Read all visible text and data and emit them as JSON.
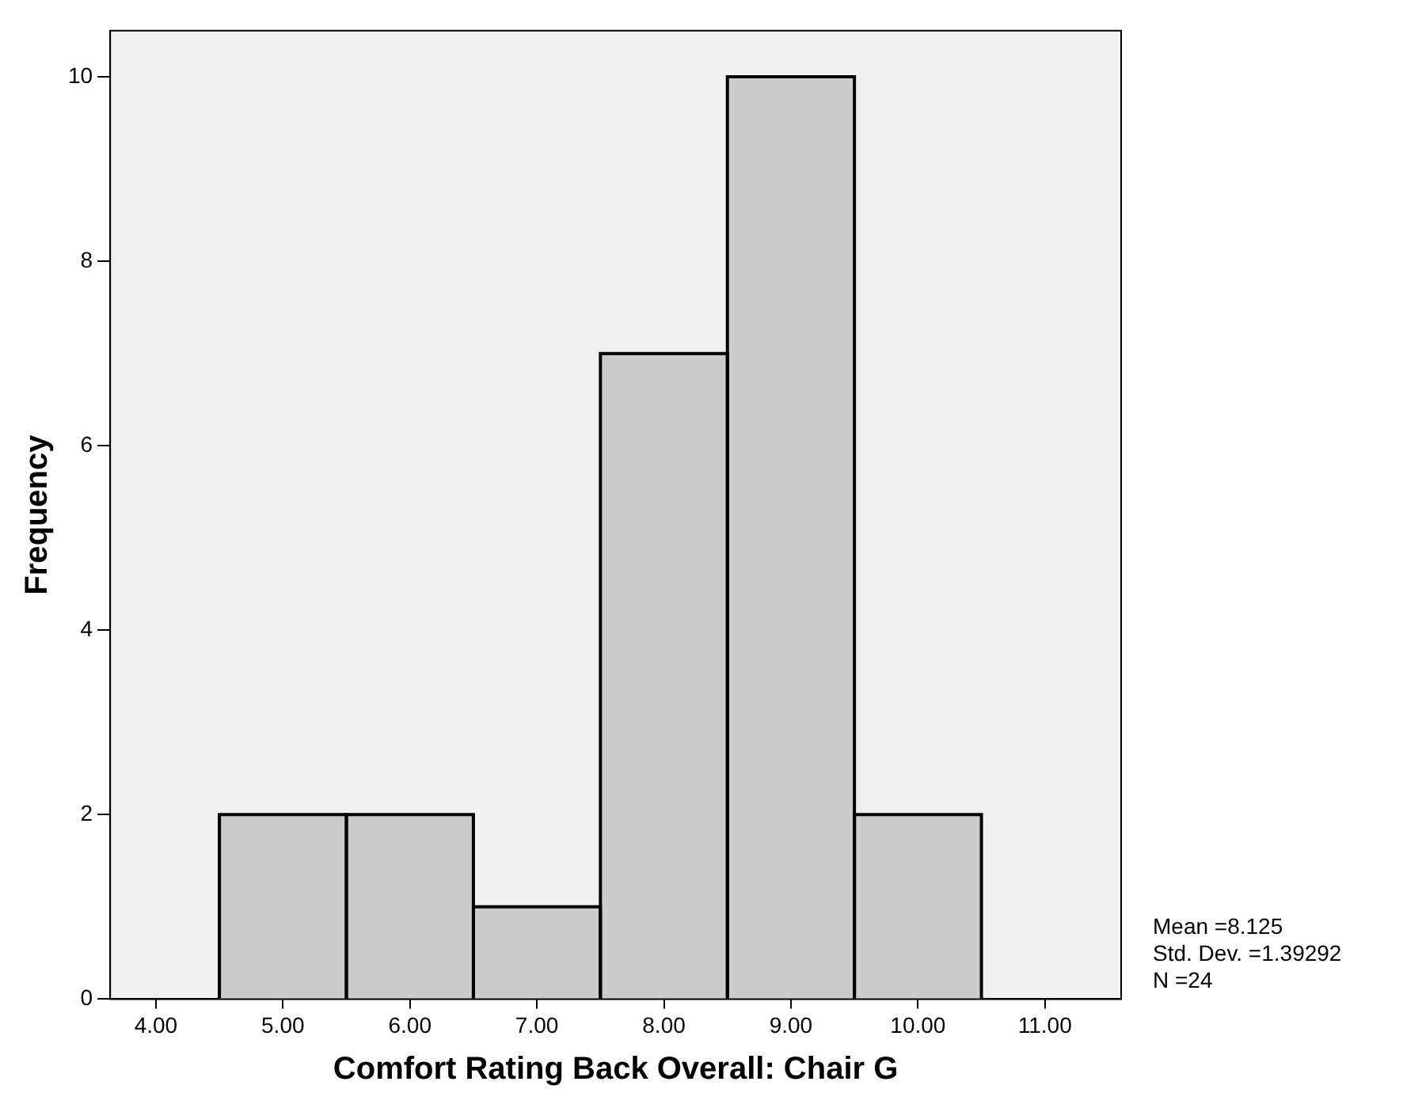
{
  "chart_data": {
    "type": "histogram",
    "xlabel": "Comfort Rating Back Overall: Chair G",
    "ylabel": "Frequency",
    "bins": [
      4.5,
      5.5,
      6.5,
      7.5,
      8.5,
      9.5,
      10.5
    ],
    "values": [
      2,
      2,
      1,
      7,
      10,
      2
    ],
    "color": "#cccccc",
    "xlim": [
      3.64,
      11.6
    ],
    "xticks": [
      {
        "value": 4,
        "label": "4.00"
      },
      {
        "value": 5,
        "label": "5.00"
      },
      {
        "value": 6,
        "label": "6.00"
      },
      {
        "value": 7,
        "label": "7.00"
      },
      {
        "value": 8,
        "label": "8.00"
      },
      {
        "value": 9,
        "label": "9.00"
      },
      {
        "value": 10,
        "label": "10.00"
      },
      {
        "value": 11,
        "label": "11.00"
      }
    ],
    "ylim": [
      0,
      10.5
    ],
    "yticks": [
      0,
      2,
      4,
      6,
      8,
      10
    ],
    "grid": false,
    "legend": false,
    "annotations": [
      "Mean =8.125",
      "Std. Dev. =1.39292",
      "N =24"
    ]
  }
}
